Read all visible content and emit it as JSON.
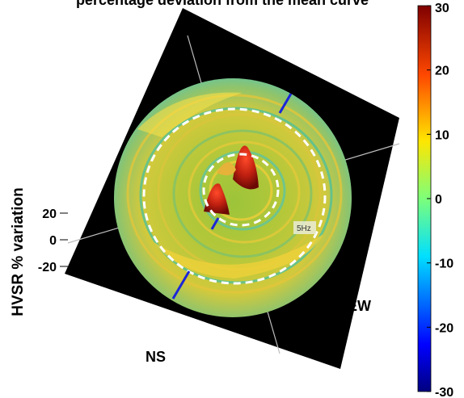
{
  "chart_data": {
    "type": "surface3d",
    "title": "percentage deviation from the mean curve",
    "zlabel": "HVSR % variation",
    "z_ticks": [
      "20",
      "0",
      "-20"
    ],
    "axis_labels": {
      "x": "EW",
      "y": "NS"
    },
    "ring_annotations": [
      "5Hz"
    ],
    "reference_circles": 2,
    "colorbar": {
      "colormap": "jet",
      "range": [
        -30,
        30
      ],
      "ticks": [
        "30",
        "20",
        "10",
        "0",
        "-10",
        "-20",
        "-30"
      ],
      "tick_values": [
        30,
        20,
        10,
        0,
        -10,
        -20,
        -30
      ]
    },
    "peaks": [
      {
        "value": 28,
        "location": "center-left"
      },
      {
        "value": 26,
        "location": "center-right"
      }
    ]
  }
}
